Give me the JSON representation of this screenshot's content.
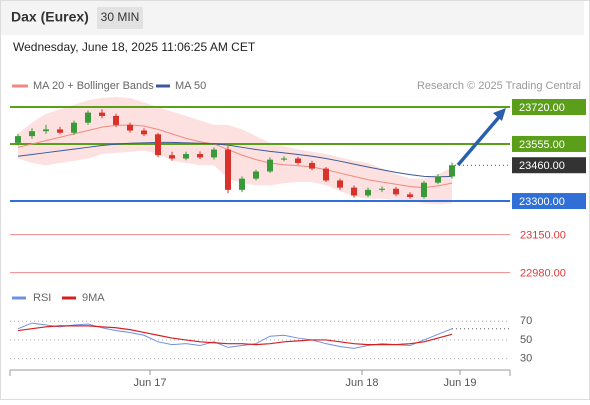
{
  "header": {
    "title": "Dax (Eurex)",
    "timeframe": "30 MIN",
    "datetime": "Wednesday, June 18, 2025 11:06:25 AM CET"
  },
  "legend": {
    "bollinger": "MA 20 + Bollinger Bands",
    "ma50": "MA 50",
    "copyright": "Research © 2025 Trading Central"
  },
  "chart_data": [
    {
      "type": "candlestick",
      "ylim": [
        22925,
        23930
      ],
      "x_labels": [
        "Jun 17",
        "Jun 18",
        "Jun 19"
      ],
      "candles": {
        "open": [
          23560,
          23590,
          23612,
          23620,
          23605,
          23650,
          23695,
          23680,
          23640,
          23615,
          23598,
          23505,
          23490,
          23510,
          23495,
          23530,
          23350,
          23400,
          23432,
          23485,
          23490,
          23470,
          23445,
          23392,
          23360,
          23325,
          23350,
          23355,
          23330,
          23318,
          23382,
          23410
        ],
        "high": [
          23600,
          23625,
          23640,
          23632,
          23660,
          23705,
          23710,
          23690,
          23650,
          23625,
          23605,
          23520,
          23520,
          23522,
          23540,
          23545,
          23410,
          23440,
          23495,
          23500,
          23498,
          23480,
          23452,
          23400,
          23370,
          23360,
          23365,
          23362,
          23340,
          23390,
          23420,
          23472
        ],
        "low": [
          23548,
          23578,
          23600,
          23598,
          23595,
          23640,
          23670,
          23630,
          23605,
          23590,
          23495,
          23480,
          23482,
          23488,
          23485,
          23335,
          23340,
          23392,
          23425,
          23478,
          23462,
          23438,
          23385,
          23350,
          23315,
          23318,
          23340,
          23322,
          23310,
          23310,
          23375,
          23400
        ],
        "close": [
          23590,
          23612,
          23620,
          23605,
          23650,
          23695,
          23680,
          23640,
          23615,
          23598,
          23505,
          23490,
          23510,
          23495,
          23530,
          23350,
          23400,
          23432,
          23485,
          23490,
          23470,
          23445,
          23392,
          23360,
          23325,
          23350,
          23355,
          23330,
          23318,
          23382,
          23410,
          23460
        ]
      },
      "ma20": {
        "name": "MA 20",
        "color": "#f08a80",
        "values": [
          23540,
          23555,
          23570,
          23585,
          23600,
          23615,
          23630,
          23638,
          23640,
          23635,
          23620,
          23600,
          23580,
          23565,
          23555,
          23530,
          23505,
          23485,
          23470,
          23462,
          23458,
          23452,
          23440,
          23425,
          23410,
          23395,
          23385,
          23375,
          23365,
          23360,
          23368,
          23380
        ]
      },
      "ma50": {
        "name": "MA 50",
        "color": "#3c5a9a",
        "values": [
          23500,
          23508,
          23516,
          23524,
          23532,
          23540,
          23548,
          23554,
          23558,
          23560,
          23562,
          23562,
          23560,
          23558,
          23556,
          23550,
          23540,
          23530,
          23522,
          23515,
          23508,
          23500,
          23490,
          23478,
          23465,
          23452,
          23440,
          23428,
          23418,
          23410,
          23408,
          23410
        ]
      },
      "bb_upper": [
        23600,
        23650,
        23690,
        23710,
        23730,
        23750,
        23760,
        23765,
        23760,
        23740,
        23720,
        23700,
        23680,
        23660,
        23640,
        23640,
        23620,
        23590,
        23560,
        23545,
        23530,
        23520,
        23510,
        23495,
        23480,
        23470,
        23445,
        23420,
        23400,
        23400,
        23420,
        23450
      ],
      "bb_lower": [
        23490,
        23470,
        23460,
        23470,
        23480,
        23490,
        23510,
        23515,
        23520,
        23525,
        23510,
        23480,
        23470,
        23460,
        23460,
        23400,
        23380,
        23370,
        23370,
        23380,
        23385,
        23385,
        23370,
        23345,
        23320,
        23310,
        23310,
        23305,
        23300,
        23290,
        23285,
        23290
      ],
      "up_color": "#3a9a3a",
      "down_color": "#d9322b",
      "band_color": "#fde0e0",
      "levels": [
        {
          "value": 23720,
          "label": "23720.00",
          "color": "#5a9e1a",
          "boxed": true,
          "line": "solid"
        },
        {
          "value": 23555,
          "label": "23555.00",
          "color": "#5a9e1a",
          "boxed": true,
          "line": "solid"
        },
        {
          "value": 23460,
          "label": "23460.00",
          "color": "#333333",
          "boxed": true,
          "line": "dotted"
        },
        {
          "value": 23300,
          "label": "23300.00",
          "color": "#2f6fd6",
          "boxed": true,
          "line": "solid"
        },
        {
          "value": 23150,
          "label": "23150.00",
          "color": "#e03a3a",
          "boxed": false,
          "line": "thin"
        },
        {
          "value": 22980,
          "label": "22980.00",
          "color": "#e03a3a",
          "boxed": false,
          "line": "thin"
        }
      ]
    },
    {
      "type": "line",
      "ylim": [
        20,
        82
      ],
      "yticks": [
        70,
        50,
        30
      ],
      "series": [
        {
          "name": "RSI",
          "color": "#6f8fe0",
          "values": [
            62,
            68,
            66,
            64,
            66,
            67,
            63,
            60,
            58,
            55,
            48,
            45,
            46,
            44,
            48,
            42,
            44,
            46,
            54,
            55,
            52,
            50,
            46,
            43,
            41,
            44,
            46,
            45,
            44,
            50,
            56,
            62
          ]
        },
        {
          "name": "9MA",
          "color": "#d62020",
          "values": [
            60,
            62,
            64,
            65,
            65,
            65,
            64,
            63,
            61,
            58,
            55,
            52,
            50,
            48,
            47,
            46,
            46,
            45,
            46,
            48,
            49,
            50,
            50,
            48,
            46,
            45,
            45,
            45,
            46,
            48,
            52,
            56
          ]
        }
      ]
    }
  ]
}
